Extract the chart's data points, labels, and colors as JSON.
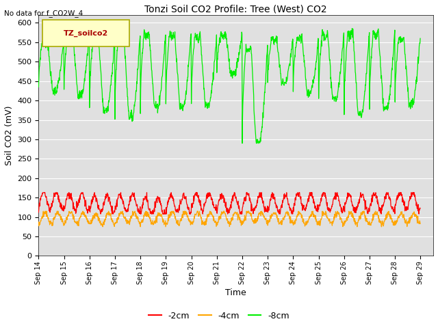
{
  "title": "Tonzi Soil CO2 Profile: Tree (West) CO2",
  "no_data_text": "No data for f_CO2W_4",
  "ylabel": "Soil CO2 (mV)",
  "xlabel": "Time",
  "legend_label": "TZ_soilco2",
  "ylim": [
    0,
    620
  ],
  "yticks": [
    0,
    50,
    100,
    150,
    200,
    250,
    300,
    350,
    400,
    450,
    500,
    550,
    600
  ],
  "bg_color": "#e0e0e0",
  "line_color_2cm": "#ff0000",
  "line_color_4cm": "#ffa500",
  "line_color_8cm": "#00ee00",
  "legend_entries": [
    "-2cm",
    "-4cm",
    "-8cm"
  ],
  "legend_colors": [
    "#ff0000",
    "#ffa500",
    "#00ee00"
  ],
  "n_days": 15,
  "start_day": 14,
  "points_per_day": 96
}
